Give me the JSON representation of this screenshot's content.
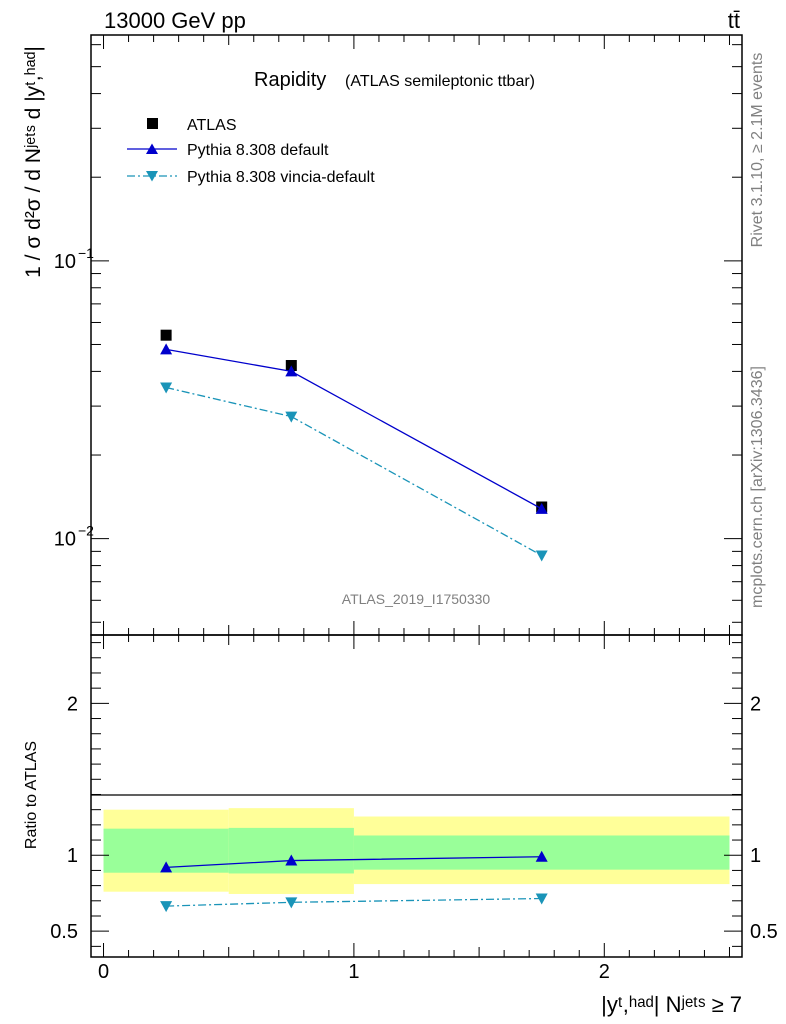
{
  "header": {
    "energy_label": "13000 GeV pp",
    "process_label": "tt̄"
  },
  "side": {
    "rivet_label": "Rivet 3.1.10, ≥ 2.1M events",
    "mcplots_label": "mcplots.cern.ch [arXiv:1306.3436]"
  },
  "chart_data": [
    {
      "type": "line",
      "panel": "main",
      "title": "Rapidity",
      "subtitle": "(ATLAS semileptonic ttbar)",
      "analysis_label": "ATLAS_2019_I1750330",
      "ylabel": "1 / σ d²σ / d Nʲᵉᵗˢ d |yᵗ,ʰᵃᵈ|",
      "y_scale": "log",
      "ylim": [
        0.0045,
        0.65
      ],
      "xlim": [
        -0.05,
        2.55
      ],
      "yticklabels": [
        {
          "value": 0.1,
          "label": "10",
          "exp": "−1"
        },
        {
          "value": 0.01,
          "label": "10",
          "exp": "−2"
        }
      ],
      "legend": {
        "position": "top-left"
      },
      "x": [
        0.25,
        0.75,
        1.75
      ],
      "series": [
        {
          "name": "ATLAS",
          "values": [
            0.054,
            0.042,
            0.013
          ],
          "color": "#000000",
          "marker": "square",
          "line": "none"
        },
        {
          "name": "Pythia 8.308 default",
          "values": [
            0.048,
            0.04,
            0.0128
          ],
          "color": "#0000cc",
          "marker": "triangle-up",
          "line": "solid"
        },
        {
          "name": "Pythia 8.308 vincia-default",
          "values": [
            0.035,
            0.0275,
            0.0087
          ],
          "color": "#1a94b8",
          "marker": "triangle-down",
          "line": "dashdot"
        }
      ]
    },
    {
      "type": "line",
      "panel": "ratio",
      "ylabel": "Ratio to ATLAS",
      "xlabel": "|yᵗ,ʰᵃᵈ| Nʲᵉᵗˢ ≥ 7",
      "ylim": [
        0.33,
        2.45
      ],
      "xlim": [
        -0.05,
        2.55
      ],
      "yticklabels": [
        {
          "value": 0.5,
          "label": "0.5"
        },
        {
          "value": 1,
          "label": "1"
        },
        {
          "value": 2,
          "label": "2"
        }
      ],
      "xticklabels": [
        {
          "value": 0,
          "label": "0"
        },
        {
          "value": 1,
          "label": "1"
        },
        {
          "value": 2,
          "label": "2"
        }
      ],
      "bands": [
        {
          "x0": 0.0,
          "x1": 0.5,
          "inner": [
            0.885,
            1.175
          ],
          "outer": [
            0.76,
            1.3
          ]
        },
        {
          "x0": 0.5,
          "x1": 1.0,
          "inner": [
            0.88,
            1.18
          ],
          "outer": [
            0.745,
            1.31
          ]
        },
        {
          "x0": 1.0,
          "x1": 2.5,
          "inner": [
            0.905,
            1.13
          ],
          "outer": [
            0.81,
            1.255
          ]
        }
      ],
      "band_colors": {
        "inner": "#99ff99",
        "outer": "#ffff99"
      },
      "x": [
        0.25,
        0.75,
        1.75
      ],
      "series": [
        {
          "name": "Pythia 8.308 default",
          "values": [
            0.92,
            0.965,
            0.99
          ],
          "color": "#0000cc",
          "marker": "triangle-up",
          "line": "solid"
        },
        {
          "name": "Pythia 8.308 vincia-default",
          "values": [
            0.665,
            0.69,
            0.715
          ],
          "color": "#1a94b8",
          "marker": "triangle-down",
          "line": "dashdot"
        }
      ]
    }
  ]
}
